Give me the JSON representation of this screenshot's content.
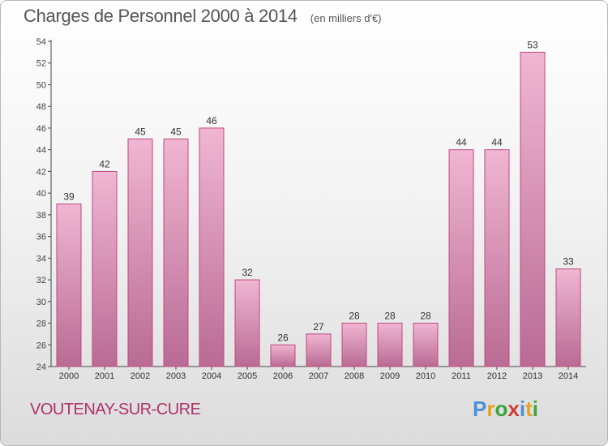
{
  "title": "Charges de Personnel 2000 à 2014",
  "subtitle": "(en milliers d'€)",
  "commune": "VOUTENAY-SUR-CURE",
  "logo": {
    "text": "Proxiti",
    "colors": [
      "#4a90d9",
      "#e8a020",
      "#3aa63a",
      "#d23a3a",
      "#4a90d9",
      "#e8a020",
      "#3aa63a"
    ]
  },
  "colors": {
    "bar_top": "#f0b6d2",
    "bar_bottom": "#b96b94",
    "bar_border": "#c0487e",
    "title": "#555555",
    "commune": "#b0336a"
  },
  "chart_data": {
    "type": "bar",
    "title": "Charges de Personnel 2000 à 2014",
    "subtitle": "(en milliers d'€)",
    "categories": [
      "2000",
      "2001",
      "2002",
      "2003",
      "2004",
      "2005",
      "2006",
      "2007",
      "2008",
      "2009",
      "2010",
      "2011",
      "2012",
      "2013",
      "2014"
    ],
    "values": [
      39,
      42,
      45,
      45,
      46,
      32,
      26,
      27,
      28,
      28,
      28,
      44,
      44,
      53,
      33
    ],
    "ylim": [
      24,
      54
    ],
    "yticks": [
      24,
      26,
      28,
      30,
      32,
      34,
      36,
      38,
      40,
      42,
      44,
      46,
      48,
      50,
      52,
      54
    ],
    "grid": false,
    "data_labels": true
  }
}
